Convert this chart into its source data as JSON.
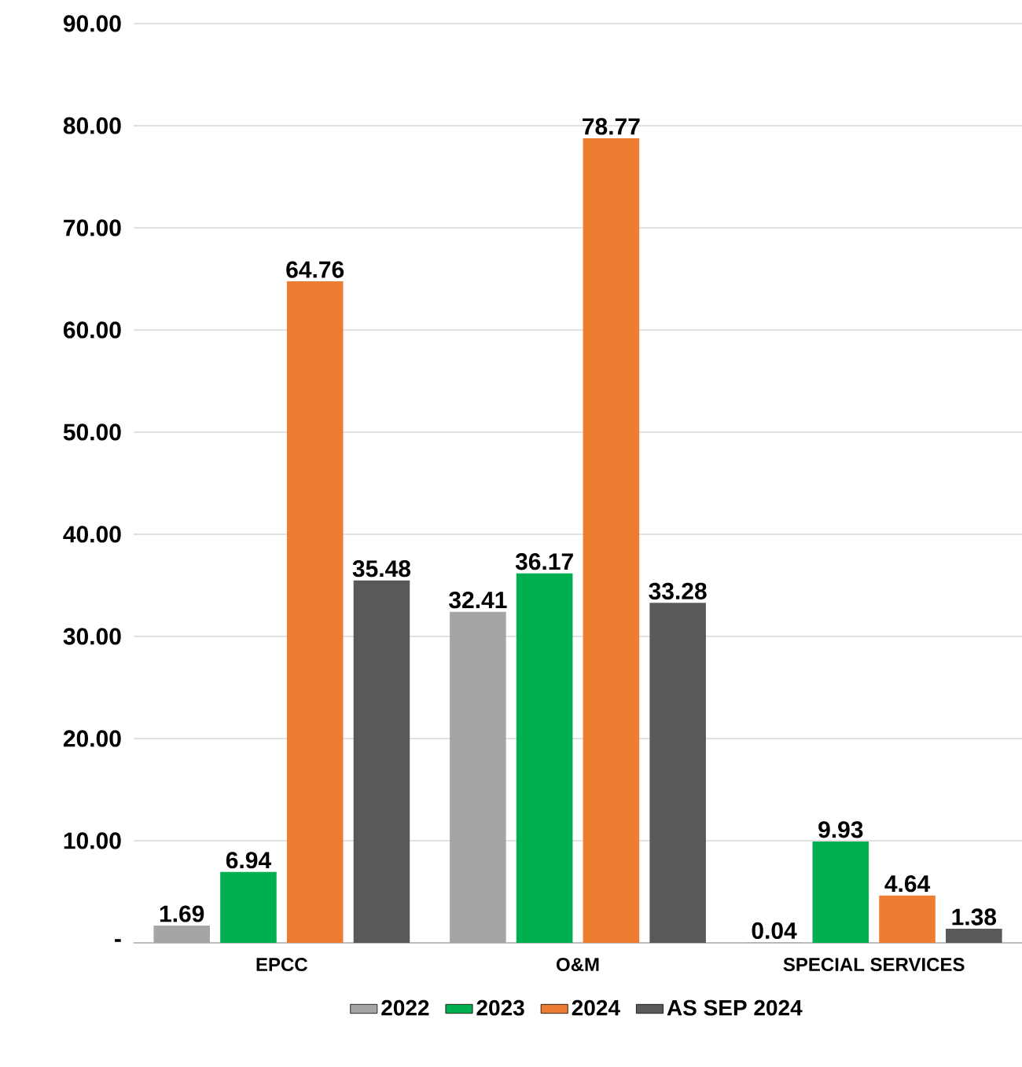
{
  "chart_data": {
    "type": "bar",
    "categories": [
      "EPCC",
      "O&M",
      "SPECIAL SERVICES"
    ],
    "series": [
      {
        "name": "2022",
        "color": "#a5a5a5",
        "values": [
          1.69,
          32.41,
          0.04
        ],
        "value_labels": [
          "1.69",
          "32.41",
          "0.04"
        ]
      },
      {
        "name": "2023",
        "color": "#00b050",
        "values": [
          6.94,
          36.17,
          9.93
        ],
        "value_labels": [
          "6.94",
          "36.17",
          "9.93"
        ]
      },
      {
        "name": "2024",
        "color": "#ed7d31",
        "values": [
          64.76,
          78.77,
          4.64
        ],
        "value_labels": [
          "64.76",
          "78.77",
          "4.64"
        ]
      },
      {
        "name": "AS SEP 2024",
        "color": "#595959",
        "values": [
          35.48,
          33.28,
          1.38
        ],
        "value_labels": [
          "35.48",
          "33.28",
          "1.38"
        ]
      }
    ],
    "ylim": [
      0,
      90
    ],
    "yticks": [
      {
        "value": 0,
        "label": "-"
      },
      {
        "value": 10,
        "label": "10.00"
      },
      {
        "value": 20,
        "label": "20.00"
      },
      {
        "value": 30,
        "label": "30.00"
      },
      {
        "value": 40,
        "label": "40.00"
      },
      {
        "value": 50,
        "label": "50.00"
      },
      {
        "value": 60,
        "label": "60.00"
      },
      {
        "value": 70,
        "label": "70.00"
      },
      {
        "value": 80,
        "label": "80.00"
      },
      {
        "value": 90,
        "label": "90.00"
      }
    ],
    "grid": "y",
    "legend": "bottom"
  }
}
